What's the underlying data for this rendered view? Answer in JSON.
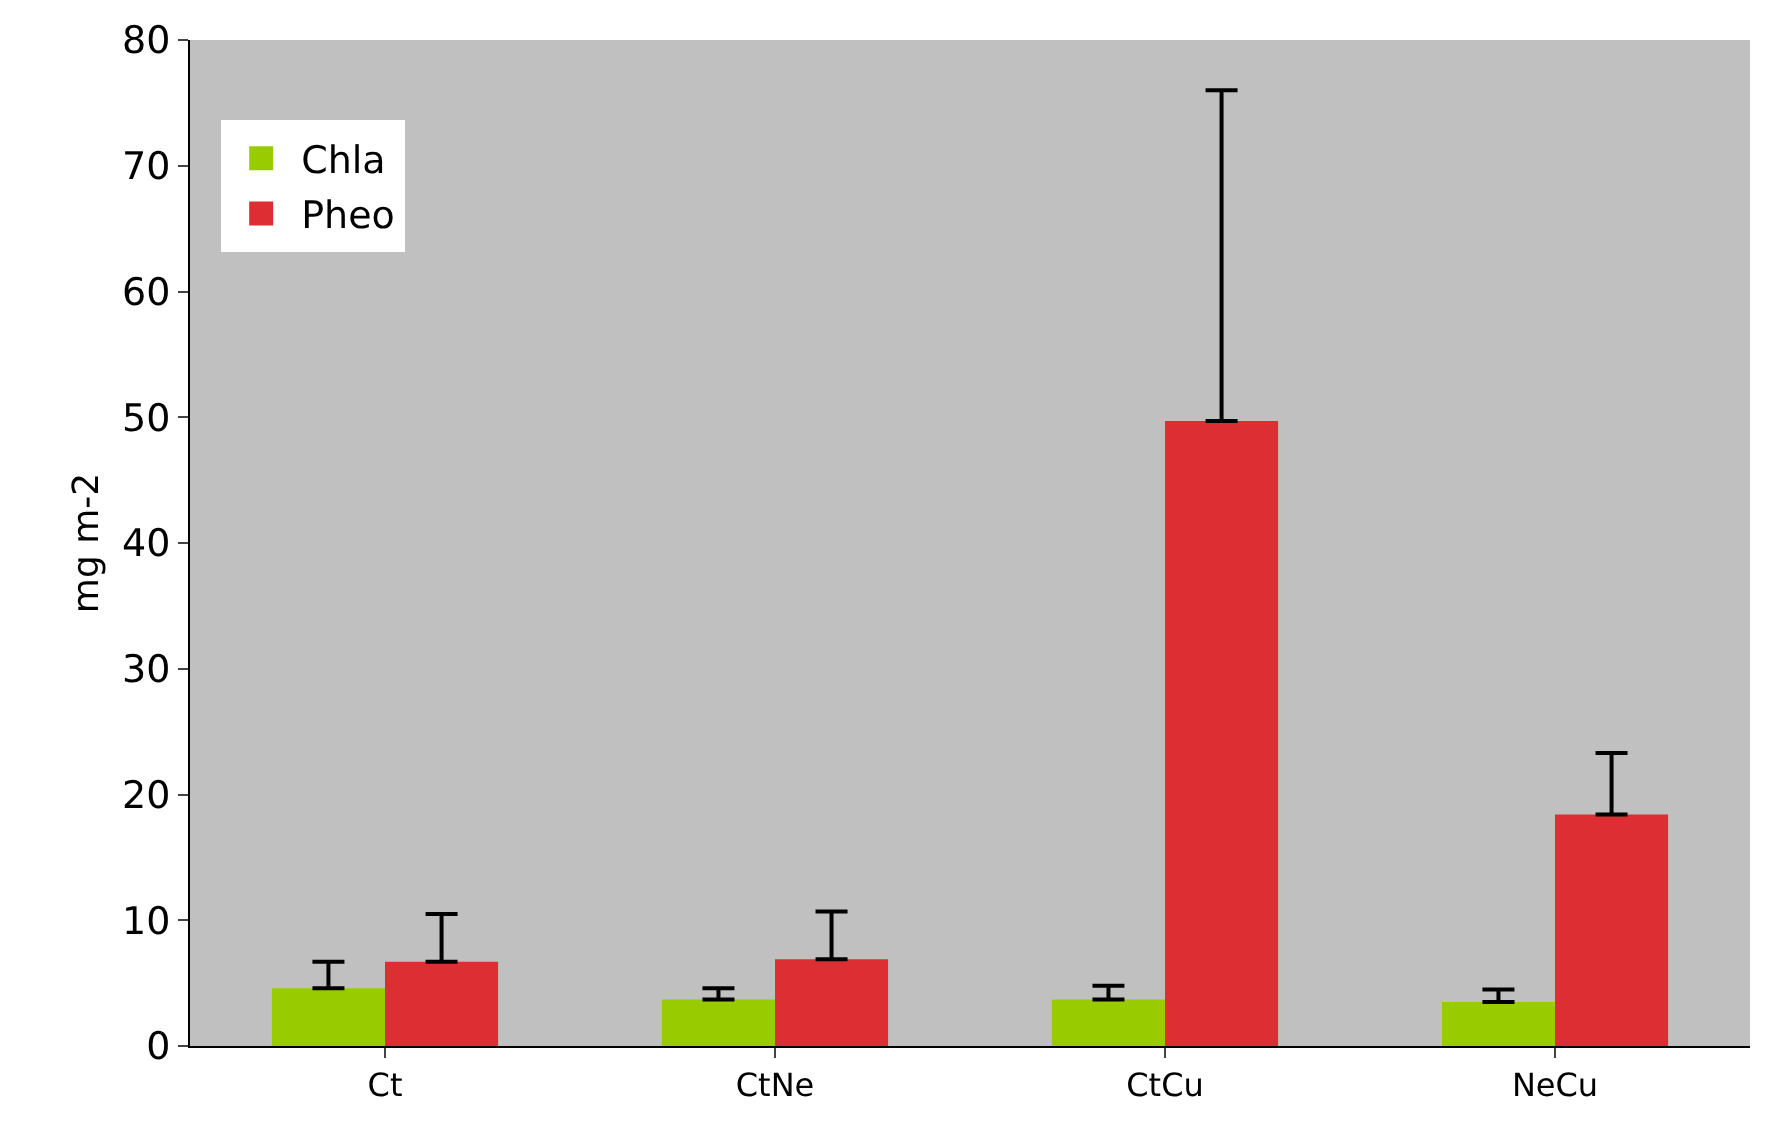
{
  "chart_data": {
    "type": "bar",
    "ylabel": "mg m-2",
    "categories": [
      "Ct",
      "CtNe",
      "CtCu",
      "NeCu"
    ],
    "series": [
      {
        "name": "Chla",
        "color": "#99cc00",
        "values": [
          4.6,
          3.7,
          3.7,
          3.5
        ],
        "errors": [
          [
            4.6,
            6.7
          ],
          [
            3.7,
            4.6
          ],
          [
            3.7,
            4.8
          ],
          [
            3.5,
            4.5
          ]
        ]
      },
      {
        "name": "Pheo",
        "color": "#dd2e33",
        "values": [
          6.7,
          6.9,
          49.7,
          18.4
        ],
        "errors": [
          [
            6.7,
            10.5
          ],
          [
            6.9,
            10.7
          ],
          [
            49.7,
            76
          ],
          [
            18.4,
            23.3
          ]
        ]
      }
    ],
    "ylim": [
      0,
      80
    ],
    "yticks": [
      0,
      10,
      20,
      30,
      40,
      50,
      60,
      70,
      80
    ],
    "grid": false,
    "legend": "top left"
  }
}
